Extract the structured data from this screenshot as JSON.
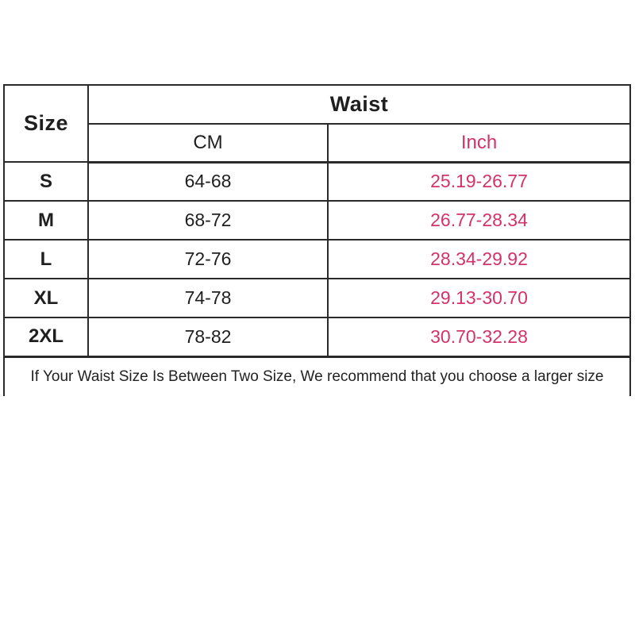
{
  "chart_data": {
    "type": "table",
    "title": "Waist",
    "columns": [
      "Size",
      "CM",
      "Inch"
    ],
    "rows": [
      [
        "S",
        "64-68",
        "25.19-26.77"
      ],
      [
        "M",
        "68-72",
        "26.77-28.34"
      ],
      [
        "L",
        "72-76",
        "28.34-29.92"
      ],
      [
        "XL",
        "74-78",
        "29.13-30.70"
      ],
      [
        "2XL",
        "78-82",
        "30.70-32.28"
      ]
    ],
    "note": "If Your Waist Size Is Between Two Size, We recommend that you choose a larger size"
  },
  "table": {
    "header": {
      "size": "Size",
      "waist": "Waist",
      "cm": "CM",
      "inch": "Inch"
    },
    "rows": [
      {
        "size": "S",
        "cm": "64-68",
        "inch": "25.19-26.77"
      },
      {
        "size": "M",
        "cm": "68-72",
        "inch": "26.77-28.34"
      },
      {
        "size": "L",
        "cm": "72-76",
        "inch": "28.34-29.92"
      },
      {
        "size": "XL",
        "cm": "74-78",
        "inch": "29.13-30.70"
      },
      {
        "size": "2XL",
        "cm": "78-82",
        "inch": "30.70-32.28"
      }
    ],
    "note": "If Your Waist Size Is Between Two Size, We recommend that you choose a larger size"
  },
  "colors": {
    "inch_accent": "#d4326a",
    "text": "#1f1f1f",
    "border": "#2a2a2a",
    "background": "#ffffff"
  }
}
